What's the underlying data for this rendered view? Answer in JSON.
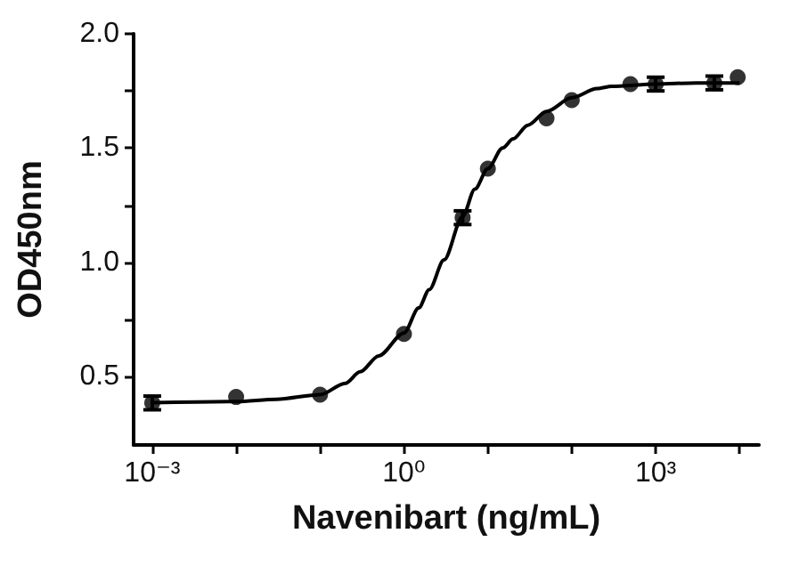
{
  "chart_data": {
    "type": "scatter",
    "xlabel": "Navenibart (ng/mL)",
    "ylabel": "OD450nm",
    "log": "x",
    "xlim": [
      0.0006,
      17000
    ],
    "ylim": [
      0.2,
      2.0
    ],
    "xticks": [
      {
        "value": 0.001,
        "label": "10⁻³"
      },
      {
        "value": 0.01,
        "label": null
      },
      {
        "value": 0.1,
        "label": null
      },
      {
        "value": 1,
        "label": "10⁰"
      },
      {
        "value": 10,
        "label": null
      },
      {
        "value": 100,
        "label": null
      },
      {
        "value": 1000,
        "label": "10³"
      },
      {
        "value": 10000,
        "label": null
      }
    ],
    "yticks": [
      {
        "value": 0.5,
        "label": "0.5"
      },
      {
        "value": 0.75,
        "label": null
      },
      {
        "value": 1,
        "label": "1.0"
      },
      {
        "value": 1.25,
        "label": null
      },
      {
        "value": 1.5,
        "label": "1.5"
      },
      {
        "value": 1.75,
        "label": null
      },
      {
        "value": 2,
        "label": "2.0"
      }
    ],
    "grid": false,
    "marker": "circle",
    "series": [
      {
        "color": "#000000",
        "x": [
          0.001,
          0.01,
          0.1,
          1,
          5,
          10,
          50,
          100,
          500,
          1000,
          5000,
          9500
        ],
        "values": [
          0.384,
          0.41,
          0.42,
          0.686,
          1.195,
          1.41,
          1.63,
          1.71,
          1.78,
          1.78,
          1.785,
          1.81
        ],
        "errors": [
          0.03,
          null,
          null,
          null,
          0.03,
          null,
          null,
          null,
          null,
          0.03,
          0.03,
          null
        ]
      },
      {
        "type": "line",
        "color": "#000000",
        "marker": "none",
        "line_style": "solid",
        "x": [
          0.001,
          0.01,
          0.03,
          0.1,
          0.2,
          0.3,
          0.5,
          1,
          1.5,
          2,
          3,
          5,
          7,
          10,
          15,
          20,
          30,
          50,
          100,
          200,
          300,
          1000,
          3000,
          10000
        ],
        "values": [
          0.385,
          0.39,
          0.4,
          0.42,
          0.47,
          0.52,
          0.59,
          0.69,
          0.8,
          0.88,
          1.01,
          1.2,
          1.32,
          1.41,
          1.5,
          1.54,
          1.6,
          1.66,
          1.72,
          1.76,
          1.77,
          1.78,
          1.785,
          1.785
        ]
      }
    ]
  }
}
